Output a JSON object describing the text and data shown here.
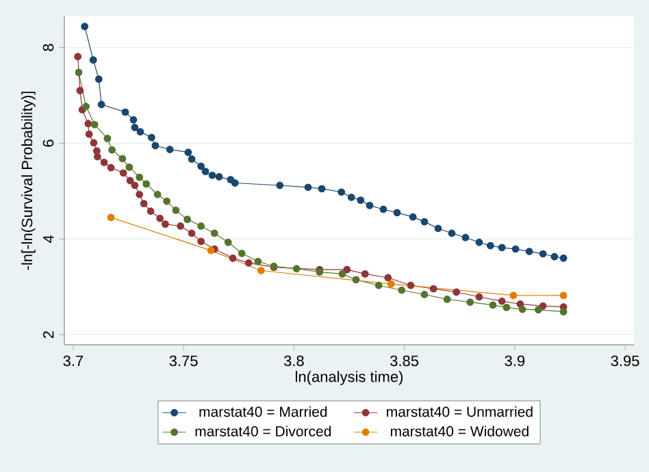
{
  "chart_data": {
    "type": "line",
    "xlabel": "ln(analysis time)",
    "ylabel": "-ln[-ln(Survival Probability)]",
    "xlim": [
      3.696,
      3.954
    ],
    "ylim": [
      1.79,
      8.65
    ],
    "xticks": [
      3.7,
      3.75,
      3.8,
      3.85,
      3.9,
      3.95
    ],
    "yticks": [
      2,
      4,
      6,
      8
    ],
    "grid": "y",
    "legend": "bottom",
    "marker": "circle",
    "line_style": "solid",
    "series": [
      {
        "name": "marstat40 = Married",
        "color": "#1a476f",
        "x": [
          3.7052,
          3.7091,
          3.7116,
          3.7128,
          3.7236,
          3.7273,
          3.7279,
          3.7304,
          3.7355,
          3.7372,
          3.7438,
          3.7521,
          3.7537,
          3.7579,
          3.7599,
          3.763,
          3.7661,
          3.7713,
          3.7733,
          3.7936,
          3.8064,
          3.8126,
          3.8215,
          3.826,
          3.8302,
          3.8343,
          3.8405,
          3.8467,
          3.8539,
          3.8591,
          3.8653,
          3.8715,
          3.8777,
          3.8839,
          3.889,
          3.8942,
          3.9004,
          3.9066,
          3.9128,
          3.918,
          3.9221
        ],
        "values": [
          8.44,
          7.74,
          7.34,
          6.81,
          6.65,
          6.49,
          6.33,
          6.24,
          6.12,
          5.95,
          5.87,
          5.81,
          5.67,
          5.52,
          5.41,
          5.33,
          5.3,
          5.24,
          5.17,
          5.12,
          5.08,
          5.05,
          4.98,
          4.87,
          4.81,
          4.7,
          4.62,
          4.55,
          4.46,
          4.36,
          4.22,
          4.12,
          4.03,
          3.93,
          3.86,
          3.82,
          3.79,
          3.74,
          3.69,
          3.63,
          3.6
        ]
      },
      {
        "name": "marstat40 = Unmarried",
        "color": "#90353b",
        "x": [
          3.7021,
          3.7031,
          3.7041,
          3.7068,
          3.7072,
          3.7093,
          3.7107,
          3.711,
          3.714,
          3.7171,
          3.7227,
          3.7258,
          3.7279,
          3.73,
          3.732,
          3.7351,
          3.7393,
          3.7417,
          3.7486,
          3.7537,
          3.7579,
          3.764,
          3.7723,
          3.7795,
          3.7909,
          3.8116,
          3.824,
          3.8322,
          3.8426,
          3.8529,
          3.8632,
          3.8736,
          3.8839,
          3.8942,
          3.9025,
          3.9128,
          3.9221
        ],
        "values": [
          7.81,
          7.1,
          6.7,
          6.41,
          6.19,
          6.01,
          5.84,
          5.72,
          5.6,
          5.49,
          5.38,
          5.22,
          5.12,
          4.93,
          4.74,
          4.58,
          4.43,
          4.31,
          4.27,
          4.12,
          3.95,
          3.79,
          3.6,
          3.5,
          3.41,
          3.36,
          3.36,
          3.27,
          3.19,
          3.03,
          2.96,
          2.89,
          2.79,
          2.7,
          2.64,
          2.6,
          2.58
        ]
      },
      {
        "name": "marstat40 = Divorced",
        "color": "#55752f",
        "x": [
          3.7025,
          3.7058,
          3.7097,
          3.7155,
          3.7176,
          3.7223,
          3.7254,
          3.73,
          3.7331,
          3.7382,
          3.7424,
          3.7465,
          3.7517,
          3.7579,
          3.764,
          3.7702,
          3.7764,
          3.7837,
          3.7909,
          3.8012,
          3.8116,
          3.8219,
          3.8281,
          3.8384,
          3.8488,
          3.8591,
          3.8694,
          3.8798,
          3.8901,
          3.8963,
          3.9035,
          3.9107,
          3.9221
        ],
        "values": [
          7.48,
          6.77,
          6.39,
          6.1,
          5.86,
          5.68,
          5.5,
          5.29,
          5.15,
          4.93,
          4.79,
          4.6,
          4.41,
          4.27,
          4.12,
          3.93,
          3.7,
          3.53,
          3.43,
          3.38,
          3.31,
          3.27,
          3.15,
          3.03,
          2.93,
          2.84,
          2.74,
          2.68,
          2.62,
          2.57,
          2.53,
          2.52,
          2.48
        ]
      },
      {
        "name": "marstat40 = Widowed",
        "color": "#e37e00",
        "x": [
          3.7171,
          3.7624,
          3.7851,
          3.844,
          3.8994,
          3.9221
        ],
        "values": [
          4.45,
          3.76,
          3.34,
          3.06,
          2.82,
          2.82
        ]
      }
    ]
  }
}
